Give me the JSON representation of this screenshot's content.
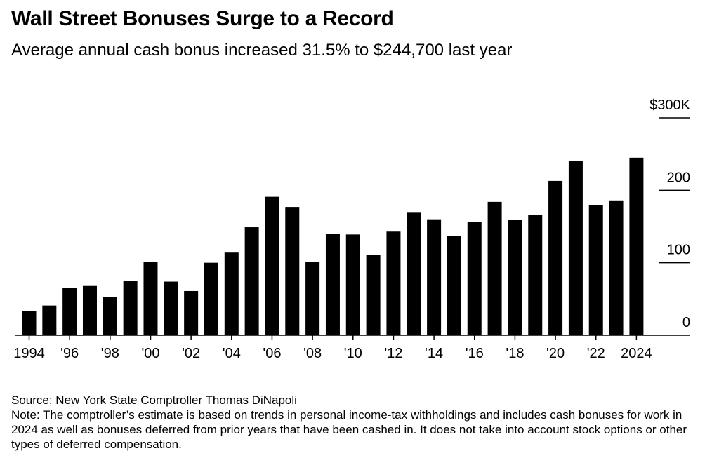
{
  "title": "Wall Street Bonuses Surge to a Record",
  "subtitle": "Average annual cash bonus increased 31.5% to $244,700 last year",
  "source": "Source: New York State Comptroller Thomas DiNapoli",
  "note": "Note: The comptroller’s estimate is based on trends in personal income-tax withholdings and includes cash bonuses for work in 2024 as well as bonuses deferred from prior years that have been cashed in. It does not take into account stock options or other types of deferred compensation.",
  "chart_data": {
    "type": "bar",
    "title": "Wall Street Bonuses Surge to a Record",
    "subtitle": "Average annual cash bonus increased 31.5% to $244,700 last year",
    "ylim": [
      0,
      300
    ],
    "y_ticks": [
      {
        "value": 300,
        "label": "$300K"
      },
      {
        "value": 200,
        "label": "200"
      },
      {
        "value": 100,
        "label": "100"
      },
      {
        "value": 0,
        "label": "0"
      }
    ],
    "x_tick_labels": [
      {
        "category": "1994",
        "label": "1994"
      },
      {
        "category": "1996",
        "label": "'96"
      },
      {
        "category": "1998",
        "label": "'98"
      },
      {
        "category": "2000",
        "label": "'00"
      },
      {
        "category": "2002",
        "label": "'02"
      },
      {
        "category": "2004",
        "label": "'04"
      },
      {
        "category": "2006",
        "label": "'06"
      },
      {
        "category": "2008",
        "label": "'08"
      },
      {
        "category": "2010",
        "label": "'10"
      },
      {
        "category": "2012",
        "label": "'12"
      },
      {
        "category": "2014",
        "label": "'14"
      },
      {
        "category": "2016",
        "label": "'16"
      },
      {
        "category": "2018",
        "label": "'18"
      },
      {
        "category": "2020",
        "label": "'20"
      },
      {
        "category": "2022",
        "label": "'22"
      },
      {
        "category": "2024",
        "label": "2024"
      }
    ],
    "categories": [
      "1994",
      "1995",
      "1996",
      "1997",
      "1998",
      "1999",
      "2000",
      "2001",
      "2002",
      "2003",
      "2004",
      "2005",
      "2006",
      "2007",
      "2008",
      "2009",
      "2010",
      "2011",
      "2012",
      "2013",
      "2014",
      "2015",
      "2016",
      "2017",
      "2018",
      "2019",
      "2020",
      "2021",
      "2022",
      "2023",
      "2024"
    ],
    "values": [
      33,
      41,
      65,
      68,
      53,
      75,
      101,
      74,
      61,
      100,
      114,
      149,
      191,
      177,
      101,
      140,
      139,
      111,
      143,
      170,
      160,
      137,
      156,
      184,
      159,
      166,
      213,
      240,
      180,
      186,
      245
    ],
    "bar_color": "#000000",
    "grid": true,
    "legend": "none"
  }
}
